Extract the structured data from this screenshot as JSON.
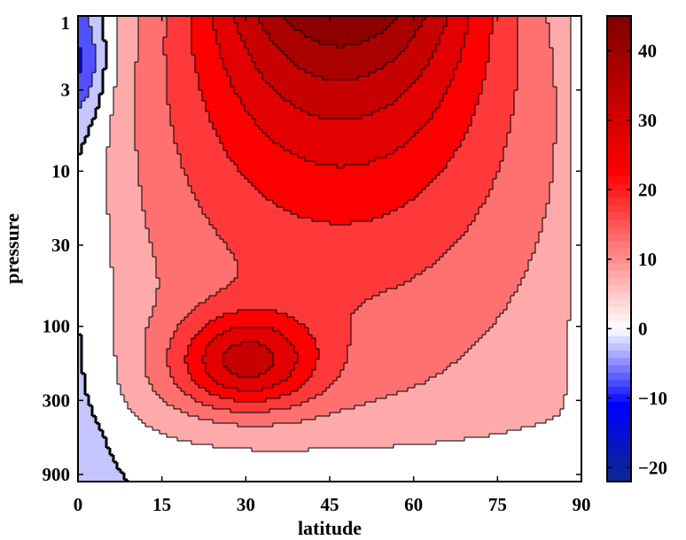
{
  "chart_data": {
    "type": "contour",
    "title": "",
    "xlabel": "latitude",
    "ylabel": "pressure",
    "x_ticks": [
      0,
      15,
      30,
      45,
      60,
      75,
      90
    ],
    "x_tick_labels": [
      "0",
      "15",
      "30",
      "45",
      "60",
      "75",
      "90"
    ],
    "xlim": [
      0,
      90
    ],
    "y_scale": "log",
    "y_reversed": true,
    "y_ticks": [
      1,
      3,
      10,
      30,
      100,
      300,
      900
    ],
    "y_tick_labels": [
      "1",
      "3",
      "10",
      "30",
      "100",
      "300",
      "900"
    ],
    "ylim": [
      1,
      1000
    ],
    "colorbar": {
      "range": [
        -22,
        45
      ],
      "ticks": [
        40,
        30,
        20,
        10,
        0,
        -10,
        -20
      ],
      "tick_labels": [
        "40",
        "30",
        "20",
        "10",
        "0",
        "−10",
        "−20"
      ],
      "colormap": "blue-white-red"
    },
    "contour_levels": [
      -20,
      -15,
      -10,
      -5,
      0,
      5,
      10,
      15,
      20,
      25,
      30,
      35,
      40,
      45
    ],
    "zero_contour_style": "thick",
    "features": [
      {
        "kind": "maximum",
        "latitude": 47,
        "pressure": 1,
        "value": 45
      },
      {
        "kind": "maximum",
        "latitude": 30,
        "pressure": 170,
        "value": 35
      },
      {
        "kind": "minimum",
        "latitude": 0,
        "pressure": 2,
        "value": -20
      },
      {
        "kind": "minimum",
        "latitude": 3,
        "pressure": 15,
        "value": -5
      },
      {
        "kind": "minimum",
        "latitude": 10,
        "pressure": 850,
        "value": -5
      }
    ]
  },
  "colors": {
    "background": "#ffffff",
    "positive_max": "#800000",
    "positive_mid": "#ff0000",
    "zero": "#ffffff",
    "negative_mid": "#0000ff",
    "negative_max": "#0a2a8c"
  }
}
